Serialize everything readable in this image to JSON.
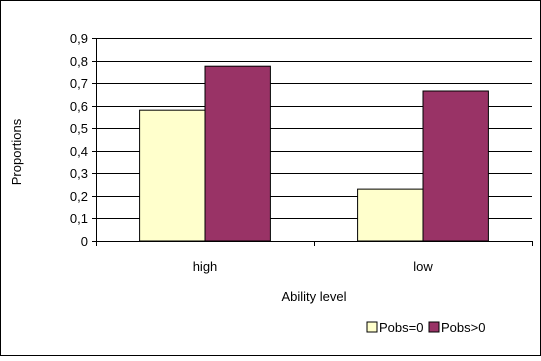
{
  "chart_data": {
    "type": "bar",
    "categories": [
      "high",
      "low"
    ],
    "series": [
      {
        "name": "Pobs=0",
        "values": [
          0.58,
          0.23
        ],
        "color": "#FFFFCC"
      },
      {
        "name": "Pobs>0",
        "values": [
          0.775,
          0.665
        ],
        "color": "#993366"
      }
    ],
    "ylim": [
      0,
      0.9
    ],
    "yticks": [
      0,
      0.1,
      0.2,
      0.3,
      0.4,
      0.5,
      0.6,
      0.7,
      0.8,
      0.9
    ],
    "ytick_labels": [
      "0",
      "0,1",
      "0,2",
      "0,3",
      "0,4",
      "0,5",
      "0,6",
      "0,7",
      "0,8",
      "0,9"
    ],
    "xlabel": "Ability level",
    "ylabel": "Proportions",
    "grid": true,
    "legend": "bottom"
  }
}
